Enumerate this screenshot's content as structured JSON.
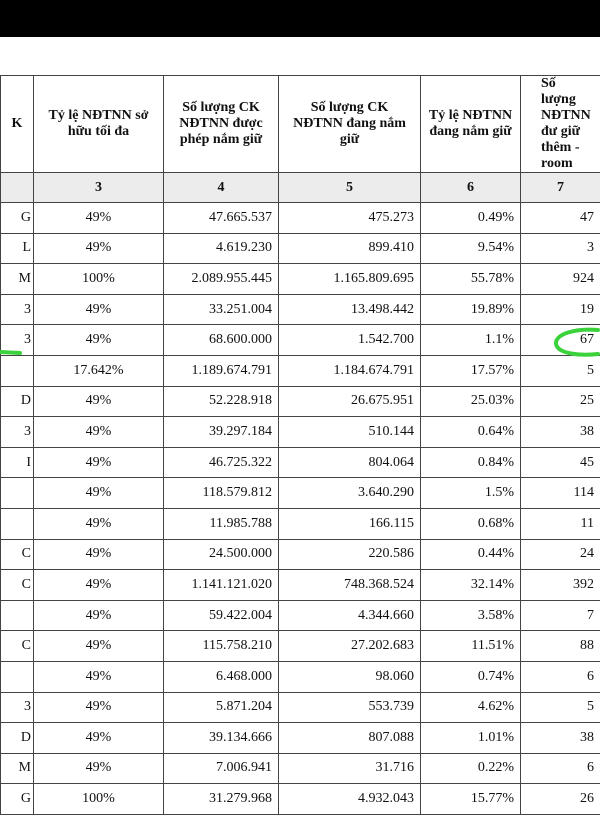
{
  "table": {
    "header_row": [
      "K",
      "Tỷ lệ NĐTNN sở hữu tối đa",
      "Số lượng CK NĐTNN được phép nắm giữ",
      "Số lượng CK NĐTNN đang nắm giữ",
      "Tỷ lệ NĐTNN đang nắm giữ",
      "Số lượng NĐTNN đư giữ thêm - room"
    ],
    "index_row": [
      null,
      "3",
      "4",
      "5",
      "6",
      "7"
    ],
    "rows": [
      [
        "G",
        "49%",
        "47.665.537",
        "475.273",
        "0.49%",
        "47"
      ],
      [
        "L",
        "49%",
        "4.619.230",
        "899.410",
        "9.54%",
        "3"
      ],
      [
        "M",
        "100%",
        "2.089.955.445",
        "1.165.809.695",
        "55.78%",
        "924"
      ],
      [
        "3",
        "49%",
        "33.251.004",
        "13.498.442",
        "19.89%",
        "19"
      ],
      [
        "3",
        "49%",
        "68.600.000",
        "1.542.700",
        "1.1%",
        "67"
      ],
      [
        null,
        "17.642%",
        "1.189.674.791",
        "1.184.674.791",
        "17.57%",
        "5"
      ],
      [
        "D",
        "49%",
        "52.228.918",
        "26.675.951",
        "25.03%",
        "25"
      ],
      [
        "3",
        "49%",
        "39.297.184",
        "510.144",
        "0.64%",
        "38"
      ],
      [
        "I",
        "49%",
        "46.725.322",
        "804.064",
        "0.84%",
        "45"
      ],
      [
        null,
        "49%",
        "118.579.812",
        "3.640.290",
        "1.5%",
        "114"
      ],
      [
        null,
        "49%",
        "11.985.788",
        "166.115",
        "0.68%",
        "11"
      ],
      [
        "C",
        "49%",
        "24.500.000",
        "220.586",
        "0.44%",
        "24"
      ],
      [
        "C",
        "49%",
        "1.141.121.020",
        "748.368.524",
        "32.14%",
        "392"
      ],
      [
        null,
        "49%",
        "59.422.004",
        "4.344.660",
        "3.58%",
        "7"
      ],
      [
        "C",
        "49%",
        "115.758.210",
        "27.202.683",
        "11.51%",
        "88"
      ],
      [
        null,
        "49%",
        "6.468.000",
        "98.060",
        "0.74%",
        "6"
      ],
      [
        "3",
        "49%",
        "5.871.204",
        "553.739",
        "4.62%",
        "5"
      ],
      [
        "D",
        "49%",
        "39.134.666",
        "807.088",
        "1.01%",
        "38"
      ],
      [
        "M",
        "49%",
        "7.006.941",
        "31.716",
        "0.22%",
        "6"
      ],
      [
        "G",
        "100%",
        "31.279.968",
        "4.932.043",
        "15.77%",
        "26"
      ]
    ]
  }
}
